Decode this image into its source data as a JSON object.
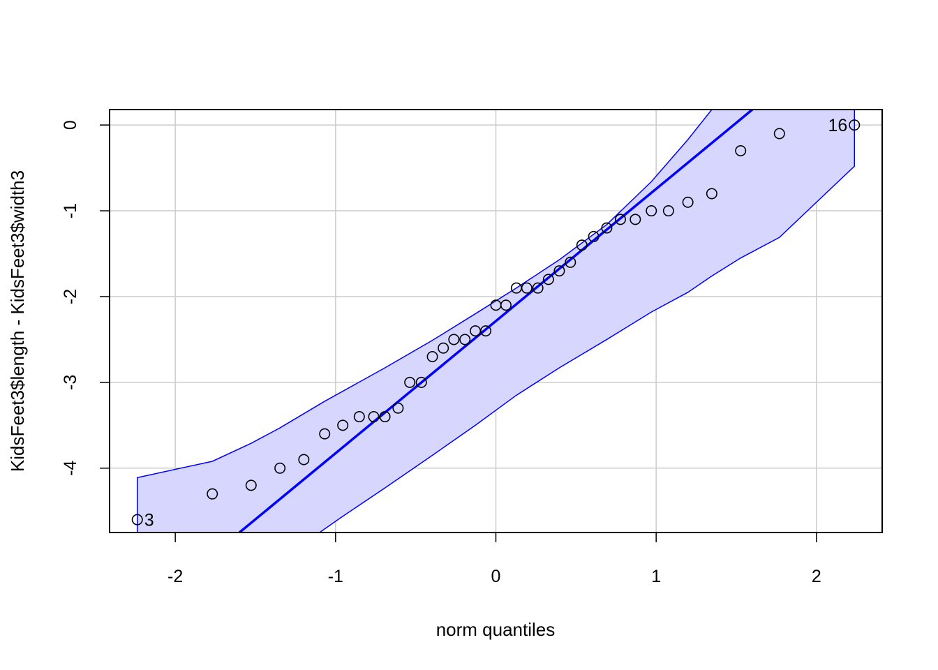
{
  "chart_data": {
    "type": "scatter",
    "title": "",
    "xlabel": "norm quantiles",
    "ylabel": "KidsFeet3$length - KidsFeet3$width3",
    "xlim": [
      -2.41,
      2.41
    ],
    "ylim": [
      -4.75,
      0.18
    ],
    "xticks": [
      {
        "value": -2,
        "label": "-2"
      },
      {
        "value": -1,
        "label": "-1"
      },
      {
        "value": 0,
        "label": "0"
      },
      {
        "value": 1,
        "label": "1"
      },
      {
        "value": 2,
        "label": "2"
      }
    ],
    "yticks": [
      {
        "value": 0,
        "label": "0"
      },
      {
        "value": -1,
        "label": "-1"
      },
      {
        "value": -2,
        "label": "-2"
      },
      {
        "value": -3,
        "label": "-3"
      },
      {
        "value": -4,
        "label": "-4"
      }
    ],
    "grid": true,
    "legend": "none",
    "colors": {
      "line": "#0000ff",
      "band_fill": "#d6d6ff",
      "band_edge": "#0000ff",
      "points": "#000000",
      "grid": "#cccccc"
    },
    "points": [
      {
        "x": -2.237,
        "y": -4.6
      },
      {
        "x": -1.769,
        "y": -4.3
      },
      {
        "x": -1.527,
        "y": -4.2
      },
      {
        "x": -1.347,
        "y": -4.0
      },
      {
        "x": -1.198,
        "y": -3.9
      },
      {
        "x": -1.068,
        "y": -3.6
      },
      {
        "x": -0.955,
        "y": -3.5
      },
      {
        "x": -0.852,
        "y": -3.4
      },
      {
        "x": -0.762,
        "y": -3.4
      },
      {
        "x": -0.692,
        "y": -3.4
      },
      {
        "x": -0.61,
        "y": -3.3
      },
      {
        "x": -0.537,
        "y": -3.0
      },
      {
        "x": -0.465,
        "y": -3.0
      },
      {
        "x": -0.396,
        "y": -2.7
      },
      {
        "x": -0.328,
        "y": -2.6
      },
      {
        "x": -0.262,
        "y": -2.5
      },
      {
        "x": -0.193,
        "y": -2.5
      },
      {
        "x": -0.128,
        "y": -2.4
      },
      {
        "x": -0.063,
        "y": -2.4
      },
      {
        "x": 0.0,
        "y": -2.1
      },
      {
        "x": 0.063,
        "y": -2.1
      },
      {
        "x": 0.128,
        "y": -1.9
      },
      {
        "x": 0.193,
        "y": -1.9
      },
      {
        "x": 0.262,
        "y": -1.9
      },
      {
        "x": 0.328,
        "y": -1.8
      },
      {
        "x": 0.396,
        "y": -1.7
      },
      {
        "x": 0.465,
        "y": -1.6
      },
      {
        "x": 0.537,
        "y": -1.4
      },
      {
        "x": 0.61,
        "y": -1.3
      },
      {
        "x": 0.692,
        "y": -1.2
      },
      {
        "x": 0.777,
        "y": -1.1
      },
      {
        "x": 0.87,
        "y": -1.1
      },
      {
        "x": 0.97,
        "y": -1.0
      },
      {
        "x": 1.077,
        "y": -1.0
      },
      {
        "x": 1.198,
        "y": -0.9
      },
      {
        "x": 1.347,
        "y": -0.8
      },
      {
        "x": 1.527,
        "y": -0.3
      },
      {
        "x": 1.769,
        "y": -0.1
      },
      {
        "x": 2.237,
        "y": 0.0
      }
    ],
    "point_labels": [
      {
        "x": -2.237,
        "y": -4.6,
        "text": "3",
        "side": "right"
      },
      {
        "x": 2.237,
        "y": 0.0,
        "text": "16",
        "side": "left"
      }
    ],
    "reference_line": {
      "from": {
        "x": -1.6,
        "y": -4.75
      },
      "to": {
        "x": 1.6,
        "y": 0.18
      }
    },
    "confidence_band": {
      "upper": [
        {
          "x": -2.237,
          "y": -4.11
        },
        {
          "x": -1.769,
          "y": -3.92
        },
        {
          "x": -1.527,
          "y": -3.71
        },
        {
          "x": -1.347,
          "y": -3.53
        },
        {
          "x": -1.068,
          "y": -3.22
        },
        {
          "x": -0.692,
          "y": -2.83
        },
        {
          "x": -0.396,
          "y": -2.51
        },
        {
          "x": -0.128,
          "y": -2.2
        },
        {
          "x": 0.128,
          "y": -1.9
        },
        {
          "x": 0.396,
          "y": -1.57
        },
        {
          "x": 0.692,
          "y": -1.16
        },
        {
          "x": 0.97,
          "y": -0.66
        },
        {
          "x": 1.198,
          "y": -0.17
        },
        {
          "x": 1.347,
          "y": 0.18
        }
      ],
      "lower": [
        {
          "x": -1.1,
          "y": -4.75
        },
        {
          "x": -0.97,
          "y": -4.58
        },
        {
          "x": -0.692,
          "y": -4.23
        },
        {
          "x": -0.396,
          "y": -3.85
        },
        {
          "x": -0.128,
          "y": -3.5
        },
        {
          "x": 0.128,
          "y": -3.15
        },
        {
          "x": 0.396,
          "y": -2.83
        },
        {
          "x": 0.692,
          "y": -2.5
        },
        {
          "x": 0.97,
          "y": -2.18
        },
        {
          "x": 1.198,
          "y": -1.95
        },
        {
          "x": 1.347,
          "y": -1.76
        },
        {
          "x": 1.527,
          "y": -1.55
        },
        {
          "x": 1.769,
          "y": -1.31
        },
        {
          "x": 2.237,
          "y": -0.48
        }
      ]
    }
  }
}
